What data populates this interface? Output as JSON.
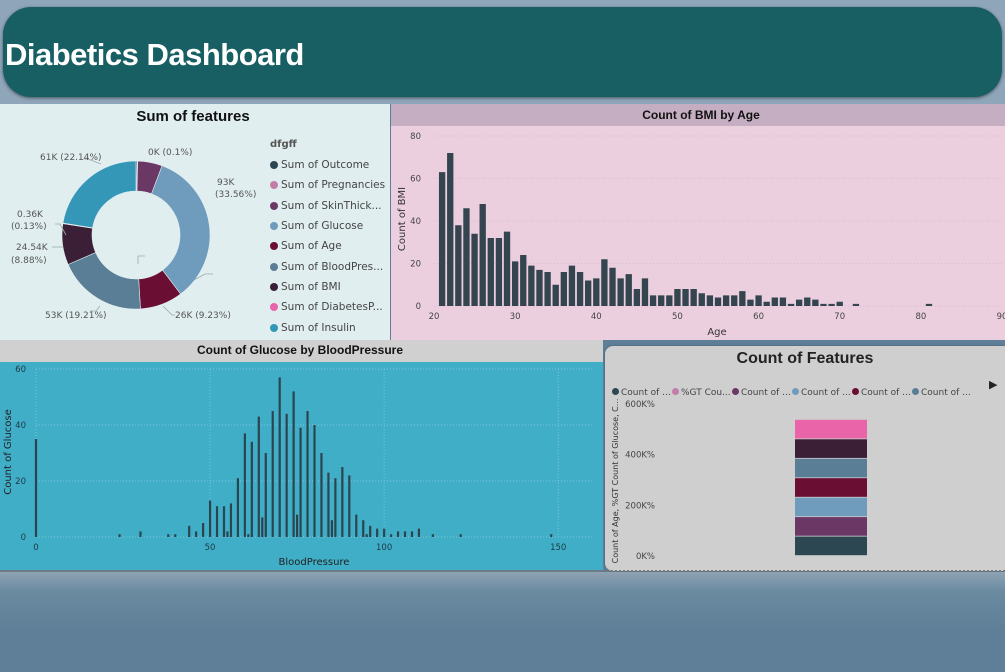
{
  "header": {
    "title": "Diabetics Dashboard"
  },
  "donut": {
    "title": "Sum of features",
    "legend_title": "dfgff",
    "legend": [
      {
        "label": "Sum of Outcome",
        "color": "#2c4652"
      },
      {
        "label": "Sum of Pregnancies",
        "color": "#c27ea8"
      },
      {
        "label": "Sum of SkinThick...",
        "color": "#6b3765"
      },
      {
        "label": "Sum of Glucose",
        "color": "#6f9bbc"
      },
      {
        "label": "Sum of Age",
        "color": "#6b0e33"
      },
      {
        "label": "Sum of BloodPres...",
        "color": "#5a7e96"
      },
      {
        "label": "Sum of BMI",
        "color": "#3b1f36"
      },
      {
        "label": "Sum of DiabetesP...",
        "color": "#e964a9"
      },
      {
        "label": "Sum of Insulin",
        "color": "#3497b8"
      }
    ],
    "labels": {
      "pregnancies": "0K (0.1%)",
      "glucose_1": "93K",
      "glucose_2": "(33.56%)",
      "age": "26K (9.23%)",
      "bloodpressure": "53K (19.21%)",
      "bmi_1": "24.54K",
      "bmi_2": "(8.88%)",
      "diabetes_1": "0.36K",
      "diabetes_2": "(0.13%)",
      "insulin": "61K (22.14%)"
    }
  },
  "bmi_chart": {
    "title": "Count of BMI by Age",
    "x_label": "Age",
    "y_label": "Count of BMI",
    "bar_color": "#34454f",
    "x_ticks": [
      "20",
      "30",
      "40",
      "50",
      "60",
      "70",
      "80",
      "90"
    ],
    "y_ticks": [
      "0",
      "20",
      "40",
      "60",
      "80"
    ]
  },
  "glucose_chart": {
    "title": "Count of Glucose by BloodPressure",
    "x_label": "BloodPressure",
    "y_label": "Count of Glucose",
    "bar_color": "#2b4550",
    "x_ticks": [
      "0",
      "50",
      "100",
      "150"
    ],
    "y_ticks": [
      "0",
      "20",
      "40",
      "60"
    ]
  },
  "features_chart": {
    "title": "Count of Features",
    "y_label": "Count of Age, %GT Count of Glucose, C...",
    "legend": [
      {
        "label": "Count of ...",
        "color": "#2c4652"
      },
      {
        "label": "%GT Cou...",
        "color": "#c27ea8"
      },
      {
        "label": "Count of ...",
        "color": "#6b3765"
      },
      {
        "label": "Count of ...",
        "color": "#6f9bbc"
      },
      {
        "label": "Count of ...",
        "color": "#6b0e33"
      },
      {
        "label": "Count of ...",
        "color": "#5a7e96"
      }
    ],
    "y_ticks": [
      "0K%",
      "200K%",
      "400K%",
      "600K%"
    ]
  },
  "chart_data": [
    {
      "type": "pie",
      "title": "Sum of features",
      "categories": [
        "Sum of Outcome",
        "Sum of Pregnancies",
        "Sum of SkinThickness",
        "Sum of Glucose",
        "Sum of Age",
        "Sum of BloodPressure",
        "Sum of BMI",
        "Sum of DiabetesPedigree",
        "Sum of Insulin"
      ],
      "values": [
        0.27,
        0.1,
        5.3,
        33.56,
        9.23,
        19.21,
        8.88,
        0.13,
        22.14
      ],
      "colors": [
        "#2c4652",
        "#c27ea8",
        "#6b3765",
        "#6f9bbc",
        "#6b0e33",
        "#5a7e96",
        "#3b1f36",
        "#e964a9",
        "#3497b8"
      ]
    },
    {
      "type": "bar",
      "title": "Count of BMI by Age",
      "xlabel": "Age",
      "ylabel": "Count of BMI",
      "xlim": [
        20,
        90
      ],
      "ylim": [
        0,
        80
      ],
      "x": [
        21,
        22,
        23,
        24,
        25,
        26,
        27,
        28,
        29,
        30,
        31,
        32,
        33,
        34,
        35,
        36,
        37,
        38,
        39,
        40,
        41,
        42,
        43,
        44,
        45,
        46,
        47,
        48,
        49,
        50,
        51,
        52,
        53,
        54,
        55,
        56,
        57,
        58,
        59,
        60,
        61,
        62,
        63,
        64,
        65,
        66,
        67,
        68,
        69,
        70,
        72,
        81
      ],
      "values": [
        63,
        72,
        38,
        46,
        34,
        48,
        32,
        32,
        35,
        21,
        24,
        19,
        17,
        16,
        10,
        16,
        19,
        16,
        12,
        13,
        22,
        18,
        13,
        15,
        8,
        13,
        5,
        5,
        5,
        8,
        8,
        8,
        6,
        5,
        4,
        5,
        5,
        7,
        3,
        5,
        2,
        4,
        4,
        1,
        3,
        4,
        3,
        1,
        1,
        2,
        1,
        1
      ]
    },
    {
      "type": "bar",
      "title": "Count of Glucose by BloodPressure",
      "xlabel": "BloodPressure",
      "ylabel": "Count of Glucose",
      "xlim": [
        0,
        160
      ],
      "ylim": [
        0,
        60
      ],
      "x": [
        0,
        24,
        30,
        38,
        40,
        44,
        46,
        48,
        50,
        52,
        54,
        55,
        56,
        58,
        60,
        61,
        62,
        64,
        65,
        66,
        68,
        70,
        72,
        74,
        75,
        76,
        78,
        80,
        82,
        84,
        85,
        86,
        88,
        90,
        92,
        94,
        95,
        96,
        98,
        100,
        102,
        104,
        106,
        108,
        110,
        114,
        122,
        148
      ],
      "values": [
        35,
        1,
        2,
        1,
        1,
        4,
        2,
        5,
        13,
        11,
        11,
        2,
        12,
        21,
        37,
        1,
        34,
        43,
        7,
        30,
        45,
        57,
        44,
        52,
        8,
        39,
        45,
        40,
        30,
        23,
        6,
        21,
        25,
        22,
        8,
        6,
        1,
        4,
        3,
        3,
        1,
        2,
        2,
        2,
        3,
        1,
        1,
        1
      ]
    },
    {
      "type": "bar",
      "title": "Count of Features",
      "ylabel": "Count of Age, %GT Count of Glucose, C...",
      "ylim": [
        0,
        600000
      ],
      "series": [
        {
          "name": "Count of ...",
          "values": [
            76800
          ]
        },
        {
          "name": "Count of ...",
          "values": [
            76800
          ]
        },
        {
          "name": "Count of ...",
          "values": [
            76800
          ]
        },
        {
          "name": "Count of ...",
          "values": [
            76800
          ]
        },
        {
          "name": "Count of ...",
          "values": [
            76800
          ]
        },
        {
          "name": "Count of ...",
          "values": [
            76800
          ]
        },
        {
          "name": "Count of ...",
          "values": [
            76800
          ]
        }
      ]
    }
  ]
}
